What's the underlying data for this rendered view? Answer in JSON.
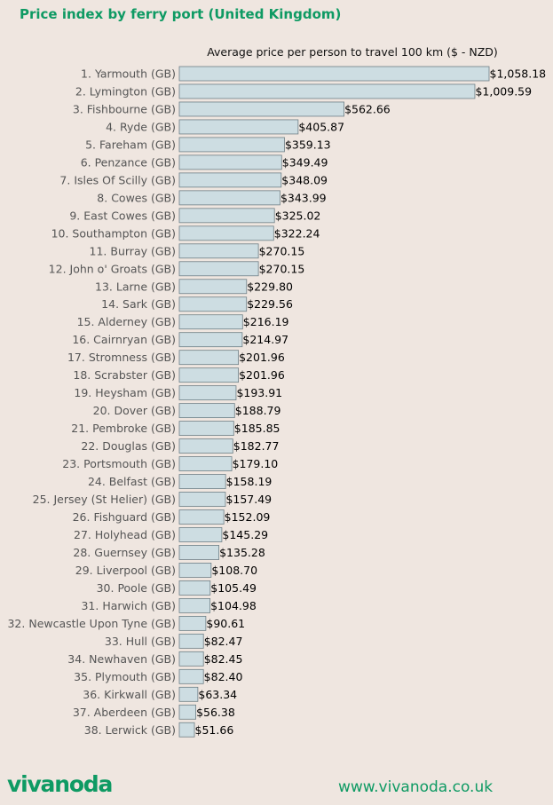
{
  "header": {
    "title": "Price index by ferry port (United Kingdom)"
  },
  "footer": {
    "logo_text": "vivanoda",
    "website": "www.vivanoda.co.uk"
  },
  "colors": {
    "accent": "#0e9a63",
    "bar_fill": "#cddde2",
    "bar_stroke": "#6e7f86",
    "background": "#efe6e0"
  },
  "chart_data": {
    "type": "bar",
    "orientation": "horizontal",
    "title": "Average price per person to travel 100 km ($ - NZD)",
    "value_prefix": "$",
    "grid": false,
    "categories": [
      "1. Yarmouth (GB)",
      "2. Lymington (GB)",
      "3. Fishbourne (GB)",
      "4. Ryde (GB)",
      "5. Fareham (GB)",
      "6. Penzance (GB)",
      "7. Isles Of Scilly (GB)",
      "8. Cowes (GB)",
      "9. East Cowes (GB)",
      "10. Southampton (GB)",
      "11. Burray (GB)",
      "12. John o' Groats (GB)",
      "13. Larne (GB)",
      "14. Sark (GB)",
      "15. Alderney (GB)",
      "16. Cairnryan (GB)",
      "17. Stromness (GB)",
      "18. Scrabster (GB)",
      "19. Heysham (GB)",
      "20. Dover (GB)",
      "21. Pembroke (GB)",
      "22. Douglas (GB)",
      "23. Portsmouth (GB)",
      "24. Belfast (GB)",
      "25. Jersey (St Helier) (GB)",
      "26. Fishguard (GB)",
      "27. Holyhead (GB)",
      "28. Guernsey (GB)",
      "29. Liverpool (GB)",
      "30. Poole (GB)",
      "31. Harwich (GB)",
      "32. Newcastle Upon Tyne (GB)",
      "33. Hull (GB)",
      "34. Newhaven (GB)",
      "35. Plymouth (GB)",
      "36. Kirkwall (GB)",
      "37. Aberdeen (GB)",
      "38. Lerwick (GB)"
    ],
    "values": [
      1058.18,
      1009.59,
      562.66,
      405.87,
      359.13,
      349.49,
      348.09,
      343.99,
      325.02,
      322.24,
      270.15,
      270.15,
      229.8,
      229.56,
      216.19,
      214.97,
      201.96,
      201.96,
      193.91,
      188.79,
      185.85,
      182.77,
      179.1,
      158.19,
      157.49,
      152.09,
      145.29,
      135.28,
      108.7,
      105.49,
      104.98,
      90.61,
      82.47,
      82.45,
      82.4,
      63.34,
      56.38,
      51.66
    ],
    "value_labels": [
      "$1,058.18",
      "$1,009.59",
      "$562.66",
      "$405.87",
      "$359.13",
      "$349.49",
      "$348.09",
      "$343.99",
      "$325.02",
      "$322.24",
      "$270.15",
      "$270.15",
      "$229.80",
      "$229.56",
      "$216.19",
      "$214.97",
      "$201.96",
      "$201.96",
      "$193.91",
      "$188.79",
      "$185.85",
      "$182.77",
      "$179.10",
      "$158.19",
      "$157.49",
      "$152.09",
      "$145.29",
      "$135.28",
      "$108.70",
      "$105.49",
      "$104.98",
      "$90.61",
      "$82.47",
      "$82.45",
      "$82.40",
      "$63.34",
      "$56.38",
      "$51.66"
    ]
  }
}
